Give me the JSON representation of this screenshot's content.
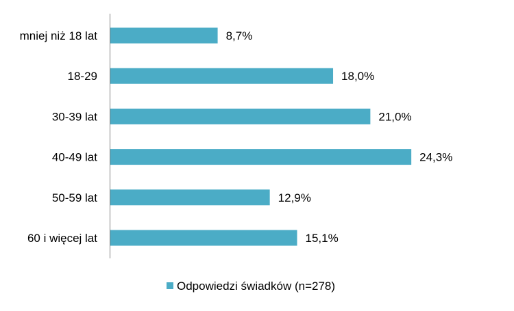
{
  "chart_data": {
    "type": "bar",
    "orientation": "horizontal",
    "categories": [
      "mniej niż 18 lat",
      "18-29",
      "30-39 lat",
      "40-49 lat",
      "50-59 lat",
      "60 i więcej lat"
    ],
    "series": [
      {
        "name": "Odpowiedzi świadków (n=278)",
        "values": [
          8.7,
          18.0,
          21.0,
          24.3,
          12.9,
          15.1
        ],
        "labels": [
          "8,7%",
          "18,0%",
          "21,0%",
          "24,3%",
          "12,9%",
          "15,1%"
        ],
        "color": "#4BACC6"
      }
    ],
    "xlim": [
      0,
      26.5
    ],
    "grid": false,
    "legend_position": "bottom"
  }
}
